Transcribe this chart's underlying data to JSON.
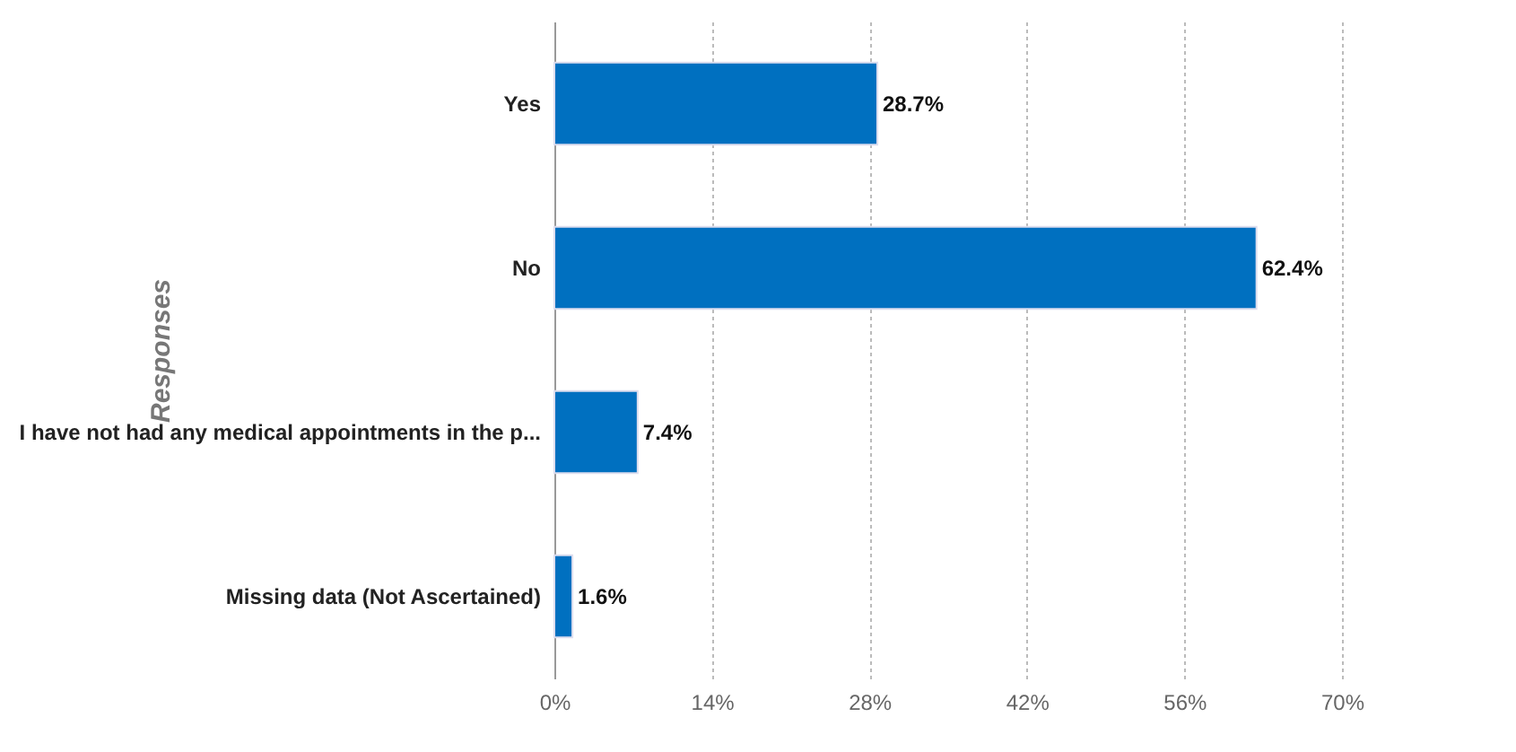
{
  "chart_data": {
    "type": "bar",
    "orientation": "horizontal",
    "ylabel": "Responses",
    "categories": [
      "Yes",
      "No",
      "I have not had any medical appointments in the p...",
      "Missing data (Not Ascertained)"
    ],
    "values": [
      28.7,
      62.4,
      7.4,
      1.6
    ],
    "color": "#0070c0",
    "value_labels": [
      "28.7%",
      "62.4%",
      "7.4%",
      "1.6%"
    ],
    "xlim": [
      0,
      70
    ],
    "xticks": [
      {
        "value": 0,
        "label": "0%"
      },
      {
        "value": 14,
        "label": "14%"
      },
      {
        "value": 28,
        "label": "28%"
      },
      {
        "value": 42,
        "label": "42%"
      },
      {
        "value": 56,
        "label": "56%"
      },
      {
        "value": 70,
        "label": "70%"
      }
    ],
    "grid": "x"
  }
}
